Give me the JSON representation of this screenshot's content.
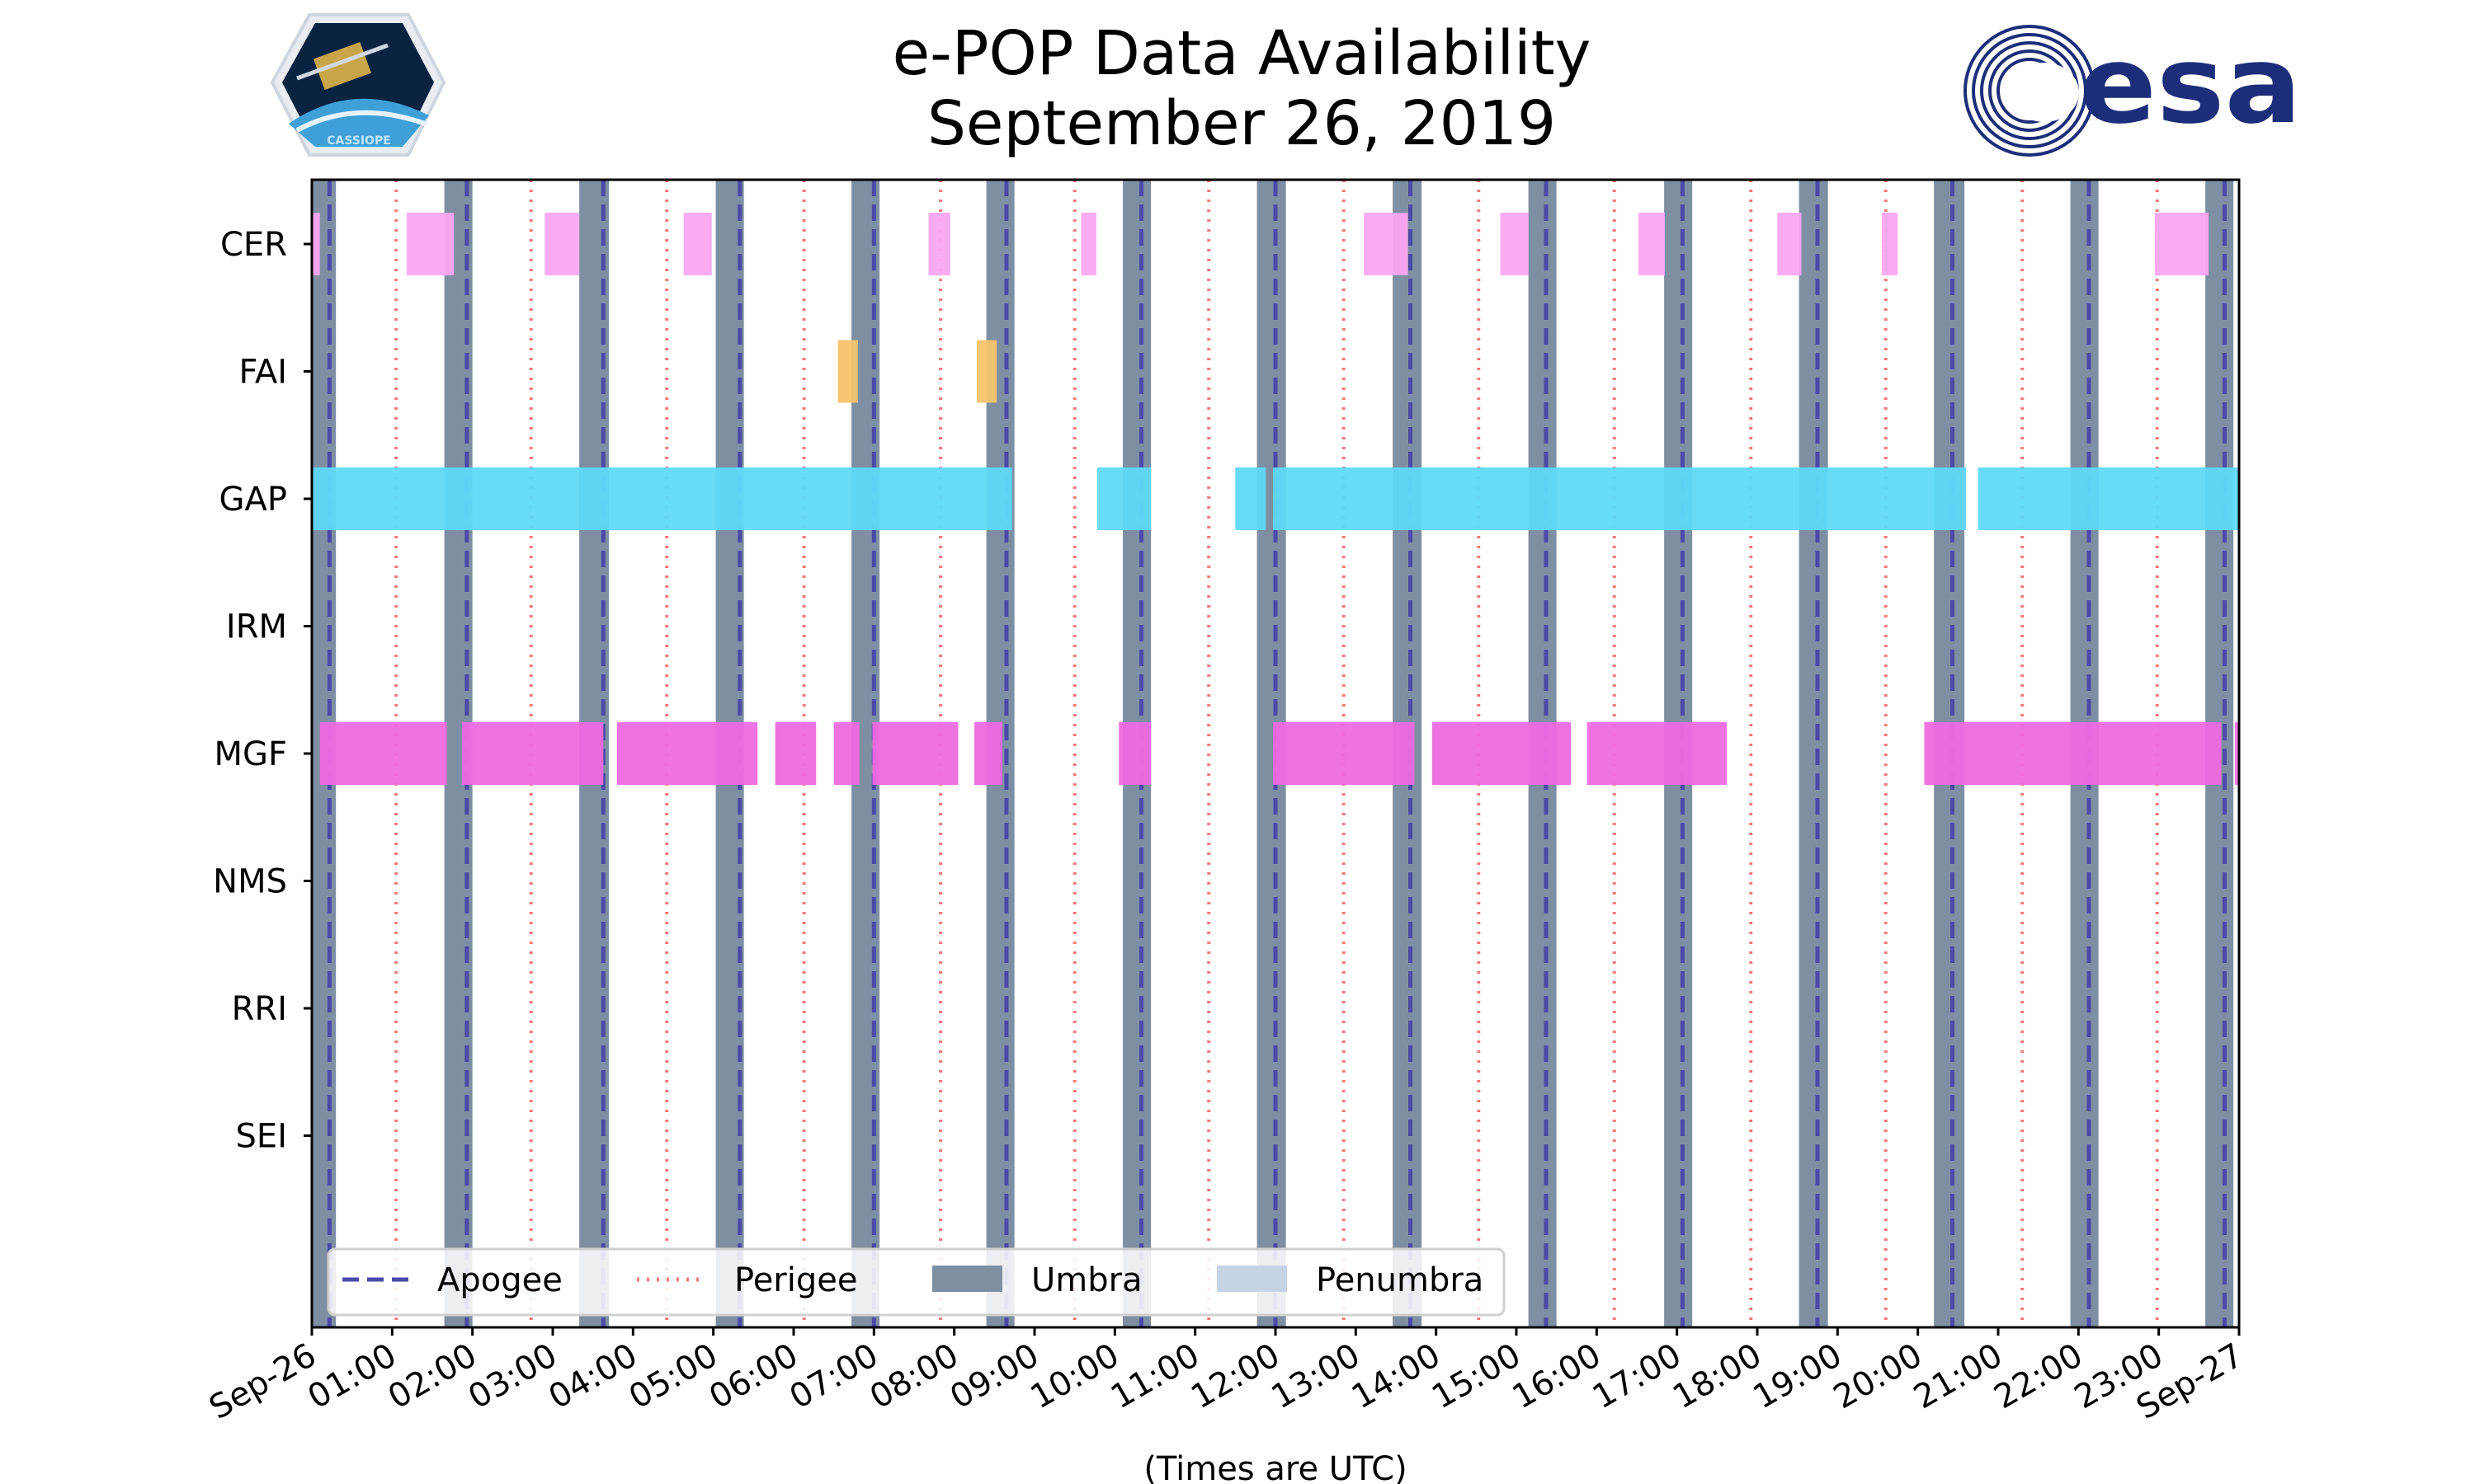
{
  "chart_data": {
    "type": "timeline",
    "title": [
      "e-POP Data Availability",
      "September 26, 2019"
    ],
    "xlabel": "(Times are UTC)",
    "xlim": [
      0,
      24
    ],
    "x_tick_labels": [
      "Sep-26",
      "01:00",
      "02:00",
      "03:00",
      "04:00",
      "05:00",
      "06:00",
      "07:00",
      "08:00",
      "09:00",
      "10:00",
      "11:00",
      "12:00",
      "13:00",
      "14:00",
      "15:00",
      "16:00",
      "17:00",
      "18:00",
      "19:00",
      "20:00",
      "21:00",
      "22:00",
      "23:00",
      "Sep-27"
    ],
    "instruments": [
      "CER",
      "FAI",
      "GAP",
      "IRM",
      "MGF",
      "NMS",
      "RRI",
      "SEI"
    ],
    "colors": {
      "CER": "#fba6f0",
      "FAI": "#f5c36c",
      "GAP": "#5fd9f8",
      "IRM": "#cccccc",
      "MGF": "#ee6ae0",
      "NMS": "#cccccc",
      "RRI": "#cccccc",
      "SEI": "#cccccc",
      "umbra": "#7f8fa3",
      "penumbra": "#c6d3e4",
      "apogee": "#4a4aa8",
      "perigee": "#f47a7a"
    },
    "series": [
      {
        "name": "CER",
        "intervals": [
          [
            0.0,
            0.1
          ],
          [
            1.18,
            1.77
          ],
          [
            2.9,
            3.33
          ],
          [
            4.63,
            4.98
          ],
          [
            7.68,
            7.95
          ],
          [
            9.58,
            9.77
          ],
          [
            13.1,
            13.65
          ],
          [
            14.8,
            15.15
          ],
          [
            16.52,
            16.85
          ],
          [
            18.25,
            18.55
          ],
          [
            19.55,
            19.75
          ],
          [
            22.95,
            23.62
          ]
        ]
      },
      {
        "name": "FAI",
        "intervals": [
          [
            6.55,
            6.8
          ],
          [
            8.28,
            8.53
          ]
        ]
      },
      {
        "name": "GAP",
        "intervals": [
          [
            0.0,
            8.72
          ],
          [
            9.78,
            10.45
          ],
          [
            11.5,
            11.88
          ],
          [
            11.97,
            20.6
          ],
          [
            20.75,
            24.0
          ]
        ]
      },
      {
        "name": "IRM",
        "intervals": []
      },
      {
        "name": "MGF",
        "intervals": [
          [
            0.1,
            1.68
          ],
          [
            1.87,
            3.63
          ],
          [
            3.8,
            5.55
          ],
          [
            5.77,
            6.28
          ],
          [
            6.5,
            6.82
          ],
          [
            6.98,
            8.05
          ],
          [
            8.25,
            8.6
          ],
          [
            10.05,
            10.45
          ],
          [
            11.97,
            13.73
          ],
          [
            13.95,
            15.68
          ],
          [
            15.88,
            17.62
          ],
          [
            20.08,
            23.78
          ],
          [
            23.95,
            24.0
          ]
        ]
      },
      {
        "name": "NMS",
        "intervals": []
      },
      {
        "name": "RRI",
        "intervals": []
      },
      {
        "name": "SEI",
        "intervals": []
      }
    ],
    "umbra": [
      [
        0.0,
        0.3
      ],
      [
        1.65,
        2.0
      ],
      [
        3.33,
        3.7
      ],
      [
        5.03,
        5.38
      ],
      [
        6.72,
        7.07
      ],
      [
        8.4,
        8.75
      ],
      [
        10.1,
        10.45
      ],
      [
        11.77,
        12.13
      ],
      [
        13.46,
        13.82
      ],
      [
        15.15,
        15.5
      ],
      [
        16.84,
        17.19
      ],
      [
        18.52,
        18.88
      ],
      [
        20.2,
        20.58
      ],
      [
        21.9,
        22.25
      ],
      [
        23.58,
        23.93
      ]
    ],
    "apogee": [
      0.22,
      1.93,
      3.63,
      5.33,
      7.0,
      8.65,
      10.33,
      12.0,
      13.68,
      15.37,
      17.07,
      18.75,
      20.43,
      22.13,
      23.82
    ],
    "perigee": [
      1.05,
      2.73,
      4.42,
      6.13,
      7.83,
      9.5,
      11.17,
      12.85,
      14.53,
      16.22,
      17.92,
      19.6,
      21.3,
      22.98
    ],
    "legend": {
      "placement": "bottom-left",
      "entries": [
        {
          "label": "Apogee",
          "style": "apogee"
        },
        {
          "label": "Perigee",
          "style": "perigee"
        },
        {
          "label": "Umbra",
          "style": "umbra"
        },
        {
          "label": "Penumbra",
          "style": "penumbra"
        }
      ]
    }
  },
  "logos": {
    "left": {
      "name": "CASSIOPE mission patch",
      "caption": "CASSIOPE"
    },
    "right": {
      "name": "ESA logo",
      "text": "esa",
      "color": "#1c2e7a"
    }
  }
}
